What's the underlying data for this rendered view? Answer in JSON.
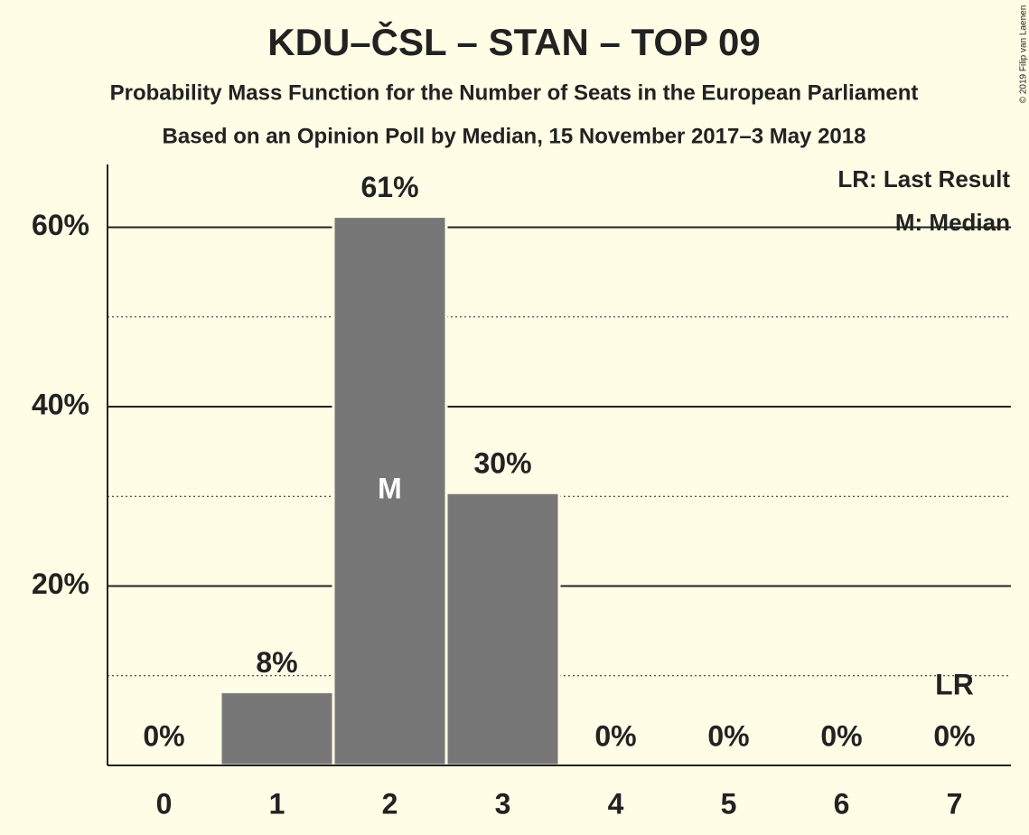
{
  "chart_data": {
    "type": "bar",
    "title": "KDU–ČSL – STAN – TOP 09",
    "subtitle": "Probability Mass Function for the Number of Seats in the European Parliament",
    "subtitle2": "Based on an Opinion Poll by Median, 15 November 2017–3 May 2018",
    "copyright": "© 2019 Filip van Laenen",
    "categories": [
      "0",
      "1",
      "2",
      "3",
      "4",
      "5",
      "6",
      "7"
    ],
    "values": [
      0,
      8.2,
      61.2,
      30.4,
      0,
      0,
      0,
      0
    ],
    "value_labels": [
      "0%",
      "8%",
      "61%",
      "30%",
      "0%",
      "0%",
      "0%",
      "0%"
    ],
    "color": "#777777",
    "ylim": [
      0,
      67
    ],
    "yticks": [
      {
        "value": 20,
        "label": "20%"
      },
      {
        "value": 40,
        "label": "40%"
      },
      {
        "value": 60,
        "label": "60%"
      }
    ],
    "minor_yticks": [
      10,
      30,
      50
    ],
    "grid": true,
    "median": {
      "index": 2,
      "label": "M"
    },
    "last_result": {
      "index": 7,
      "label": "LR"
    },
    "legend": [
      "LR: Last Result",
      "M: Median"
    ]
  }
}
